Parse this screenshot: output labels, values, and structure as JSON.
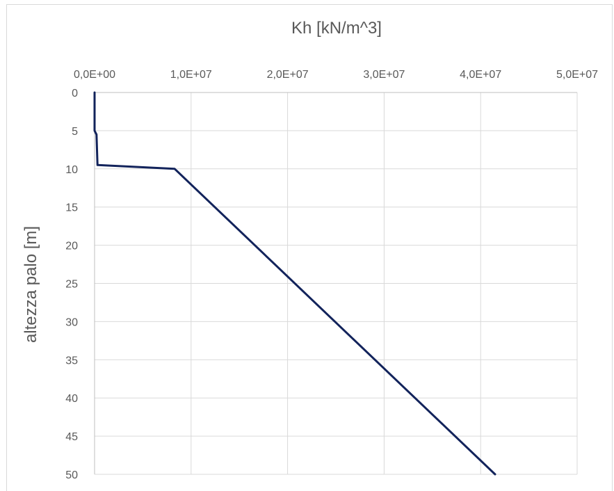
{
  "chart_data": {
    "type": "line",
    "title": "Kh [kN/m^3]",
    "xlabel": "Kh [kN/m^3]",
    "ylabel": "altezza palo [m]",
    "x_axis_position": "top",
    "y_axis_reversed": true,
    "xlim": [
      0,
      50000000
    ],
    "ylim": [
      0,
      50
    ],
    "x_ticks": [
      0,
      10000000,
      20000000,
      30000000,
      40000000,
      50000000
    ],
    "x_tick_labels": [
      "0,0E+00",
      "1,0E+07",
      "2,0E+07",
      "3,0E+07",
      "4,0E+07",
      "5,0E+07"
    ],
    "y_ticks": [
      0,
      5,
      10,
      15,
      20,
      25,
      30,
      35,
      40,
      45,
      50
    ],
    "y_tick_labels": [
      "0",
      "5",
      "10",
      "15",
      "20",
      "25",
      "30",
      "35",
      "40",
      "45",
      "50"
    ],
    "grid": true,
    "legend": false,
    "series": [
      {
        "color": "#12235b",
        "points": [
          [
            0,
            0
          ],
          [
            0,
            5
          ],
          [
            200000,
            5.5
          ],
          [
            300000,
            9.5
          ],
          [
            8300000,
            10
          ],
          [
            41500000,
            50
          ]
        ]
      }
    ]
  }
}
